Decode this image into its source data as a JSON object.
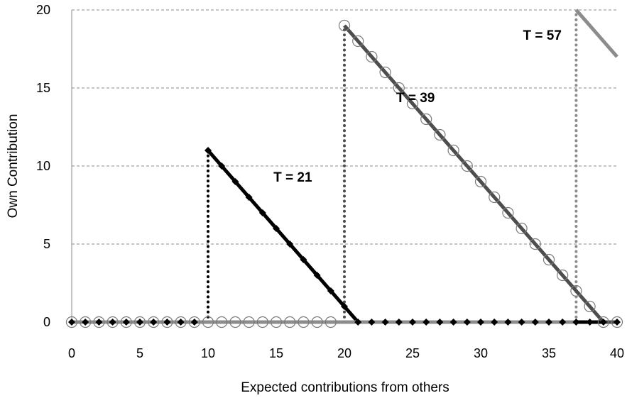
{
  "chart_data": {
    "type": "line",
    "xlabel": "Expected contributions from others",
    "ylabel": "Own Contribution",
    "xlim": [
      0,
      40
    ],
    "ylim": [
      0,
      20
    ],
    "x_ticks": [
      0,
      5,
      10,
      15,
      20,
      25,
      30,
      35,
      40
    ],
    "y_ticks": [
      0,
      5,
      10,
      15,
      20
    ],
    "grid": "horizontal-dashed",
    "annotations": [
      {
        "text": "T = 21",
        "x": 14.8,
        "y": 9
      },
      {
        "text": "T = 39",
        "x": 23.8,
        "y": 14.1
      },
      {
        "text": "T = 57",
        "x": 33.1,
        "y": 18.1
      }
    ],
    "series": [
      {
        "threshold": 21,
        "color": "#000000",
        "marker": "diamond",
        "x": [
          0,
          1,
          2,
          3,
          4,
          5,
          6,
          7,
          8,
          9,
          10,
          10,
          11,
          12,
          13,
          14,
          15,
          16,
          17,
          18,
          19,
          20,
          21,
          22,
          23,
          24,
          25,
          26,
          27,
          28,
          29,
          30,
          31,
          32,
          33,
          34,
          35,
          36,
          37,
          38,
          39,
          40
        ],
        "y": [
          0,
          0,
          0,
          0,
          0,
          0,
          0,
          0,
          0,
          0,
          0,
          11,
          10,
          9,
          8,
          7,
          6,
          5,
          4,
          3,
          2,
          1,
          0,
          0,
          0,
          0,
          0,
          0,
          0,
          0,
          0,
          0,
          0,
          0,
          0,
          0,
          0,
          0,
          0,
          0,
          0,
          0
        ],
        "marker_x": [
          0,
          1,
          2,
          3,
          4,
          5,
          6,
          7,
          8,
          9,
          10,
          11,
          12,
          13,
          14,
          15,
          16,
          17,
          18,
          19,
          20,
          21,
          22,
          23,
          24,
          25,
          26,
          27,
          28,
          29,
          30,
          31,
          32,
          33,
          34,
          35,
          36,
          37,
          38,
          39,
          40
        ],
        "marker_y": [
          0,
          0,
          0,
          0,
          0,
          0,
          0,
          0,
          0,
          0,
          11,
          10,
          9,
          8,
          7,
          6,
          5,
          4,
          3,
          2,
          1,
          0,
          0,
          0,
          0,
          0,
          0,
          0,
          0,
          0,
          0,
          0,
          0,
          0,
          0,
          0,
          0,
          0,
          0,
          0,
          0
        ],
        "drop_x": 10
      },
      {
        "threshold": 39,
        "color": "#4d4d4d",
        "marker": "circle",
        "x": [
          0,
          20,
          20,
          39,
          40
        ],
        "y": [
          0,
          0,
          19,
          0,
          0
        ],
        "marker_x": [
          0,
          1,
          2,
          3,
          4,
          5,
          6,
          7,
          8,
          9,
          10,
          11,
          12,
          13,
          14,
          15,
          16,
          17,
          18,
          19,
          20,
          21,
          22,
          23,
          24,
          25,
          26,
          27,
          28,
          29,
          30,
          31,
          32,
          33,
          34,
          35,
          36,
          37,
          38,
          39,
          40
        ],
        "marker_y": [
          0,
          0,
          0,
          0,
          0,
          0,
          0,
          0,
          0,
          0,
          0,
          0,
          0,
          0,
          0,
          0,
          0,
          0,
          0,
          0,
          19,
          18,
          17,
          16,
          15,
          14,
          13,
          12,
          11,
          10,
          9,
          8,
          7,
          6,
          5,
          4,
          3,
          2,
          1,
          0,
          0
        ],
        "drop_x": 20
      },
      {
        "threshold": 57,
        "color": "#8c8c8c",
        "marker": "none",
        "x": [
          0,
          37,
          37,
          40
        ],
        "y": [
          0,
          0,
          20,
          17
        ],
        "marker_x": [],
        "marker_y": [],
        "drop_x": 37
      }
    ]
  }
}
